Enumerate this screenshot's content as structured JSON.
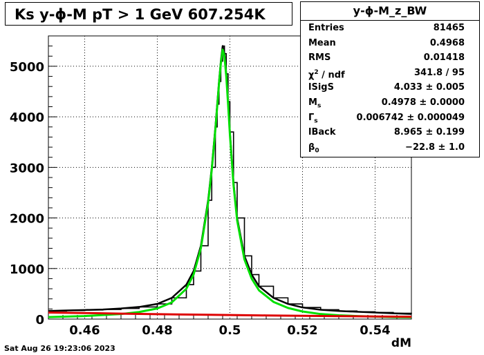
{
  "title": "Ks y-ϕ-M pT > 1 GeV  607.254K",
  "datestamp": "Sat Aug 26 19:23:06 2023",
  "stats": {
    "name": "y-ϕ-M_z_BW",
    "rows": [
      {
        "key": "Entries",
        "value": "81465"
      },
      {
        "key": "Mean",
        "value": "0.4968"
      },
      {
        "key": "RMS",
        "value": "0.01418"
      },
      {
        "key": "χ",
        "sup": "2",
        "key2": " / ndf",
        "value": "341.8 / 95"
      },
      {
        "key": "lSigS",
        "value": "4.033 ± 0.005"
      },
      {
        "key": "M",
        "sub": "s",
        "value": "0.4978 ± 0.0000"
      },
      {
        "key": "Γ",
        "sub": "s",
        "value": "0.006742 ± 0.000049"
      },
      {
        "key": "lBack",
        "value": "8.965 ± 0.199"
      },
      {
        "key": "β",
        "sub": "0",
        "value": "−22.8 ± 1.0"
      }
    ]
  },
  "chart_data": {
    "type": "line",
    "title": "Ks y-ϕ-M pT > 1 GeV  607.254K",
    "xlabel": "dM",
    "ylabel": "",
    "xlim": [
      0.45,
      0.55
    ],
    "ylim": [
      0,
      5600
    ],
    "grid": true,
    "x_ticks": [
      0.46,
      0.48,
      0.5,
      0.52,
      0.54
    ],
    "x_tick_labels": [
      "0.46",
      "0.48",
      "0.5",
      "0.52",
      "0.54"
    ],
    "y_ticks": [
      0,
      1000,
      2000,
      3000,
      4000,
      5000
    ],
    "y_tick_labels": [
      "0",
      "1000",
      "2000",
      "3000",
      "4000",
      "5000"
    ],
    "series": [
      {
        "role": "histogram",
        "color": "#000000",
        "x": [
          0.45,
          0.455,
          0.46,
          0.465,
          0.47,
          0.475,
          0.48,
          0.484,
          0.488,
          0.49,
          0.492,
          0.494,
          0.495,
          0.496,
          0.4965,
          0.497,
          0.4975,
          0.498,
          0.4985,
          0.499,
          0.4995,
          0.5,
          0.501,
          0.502,
          0.504,
          0.506,
          0.508,
          0.512,
          0.516,
          0.52,
          0.525,
          0.53,
          0.535,
          0.54,
          0.545,
          0.55
        ],
        "y": [
          160,
          170,
          180,
          190,
          210,
          240,
          300,
          420,
          680,
          950,
          1450,
          2350,
          3000,
          3800,
          4250,
          4700,
          5100,
          5400,
          5250,
          4850,
          4300,
          3700,
          2700,
          2000,
          1250,
          880,
          650,
          420,
          300,
          230,
          185,
          160,
          145,
          130,
          115,
          100
        ]
      },
      {
        "role": "signal-fit",
        "color": "#00e000",
        "x": [
          0.45,
          0.455,
          0.46,
          0.465,
          0.47,
          0.475,
          0.48,
          0.484,
          0.488,
          0.49,
          0.492,
          0.494,
          0.495,
          0.496,
          0.4965,
          0.497,
          0.4975,
          0.498,
          0.4985,
          0.499,
          0.4995,
          0.5,
          0.501,
          0.502,
          0.504,
          0.506,
          0.508,
          0.512,
          0.516,
          0.52,
          0.525,
          0.53,
          0.535,
          0.54,
          0.545,
          0.55
        ],
        "y": [
          40,
          50,
          60,
          80,
          100,
          140,
          210,
          330,
          600,
          880,
          1400,
          2300,
          2950,
          3750,
          4200,
          4650,
          5050,
          5330,
          5200,
          4800,
          4250,
          3650,
          2650,
          1950,
          1180,
          800,
          570,
          340,
          220,
          150,
          100,
          75,
          60,
          50,
          40,
          35
        ]
      },
      {
        "role": "background-fit",
        "color": "#dd0000",
        "x": [
          0.45,
          0.46,
          0.47,
          0.48,
          0.49,
          0.5,
          0.51,
          0.52,
          0.53,
          0.54,
          0.55
        ],
        "y": [
          130,
          120,
          108,
          98,
          88,
          80,
          72,
          65,
          58,
          52,
          46
        ]
      }
    ]
  }
}
